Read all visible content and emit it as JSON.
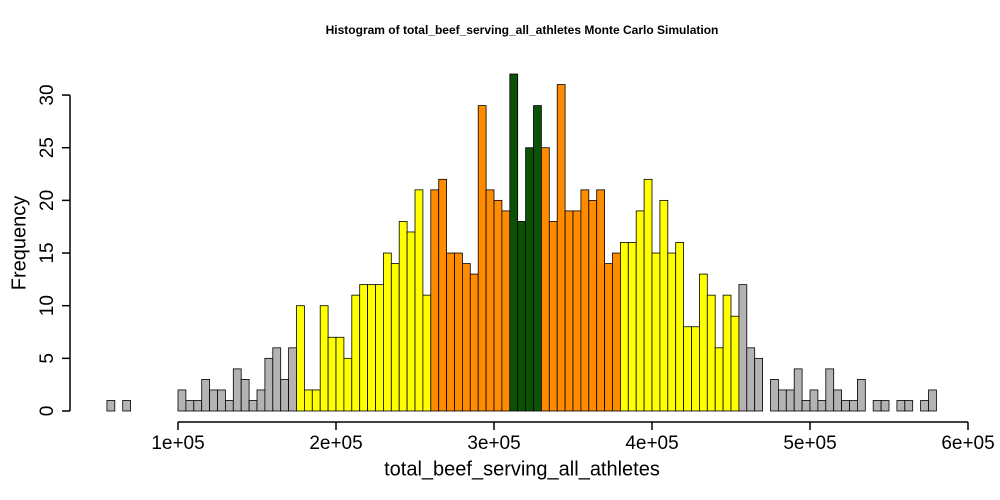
{
  "chart_data": {
    "type": "histogram",
    "title": "Histogram of  total_beef_serving_all_athletes  Monte Carlo Simulation",
    "x_label": "total_beef_serving_all_athletes",
    "y_label": "Frequency",
    "bins": [
      55000,
      60000,
      65000,
      70000,
      75000,
      80000,
      85000,
      90000,
      95000,
      100000,
      105000,
      110000,
      115000,
      120000,
      125000,
      130000,
      135000,
      140000,
      145000,
      150000,
      155000,
      160000,
      165000,
      170000,
      175000,
      180000,
      185000,
      190000,
      195000,
      200000,
      205000,
      210000,
      215000,
      220000,
      225000,
      230000,
      235000,
      240000,
      245000,
      250000,
      255000,
      260000,
      265000,
      270000,
      275000,
      280000,
      285000,
      290000,
      295000,
      300000,
      305000,
      310000,
      315000,
      320000,
      325000,
      330000,
      335000,
      340000,
      345000,
      350000,
      355000,
      360000,
      365000,
      370000,
      375000,
      380000,
      385000,
      390000,
      395000,
      400000,
      405000,
      410000,
      415000,
      420000,
      425000,
      430000,
      435000,
      440000,
      445000,
      450000,
      455000,
      460000,
      465000,
      470000,
      475000,
      480000,
      485000,
      490000,
      495000,
      500000,
      505000,
      510000,
      515000,
      520000,
      525000,
      530000,
      535000,
      540000,
      545000,
      550000,
      555000,
      560000,
      565000,
      570000,
      575000,
      580000
    ],
    "values": [
      1,
      0,
      1,
      0,
      0,
      0,
      0,
      0,
      0,
      2,
      1,
      1,
      3,
      2,
      2,
      1,
      4,
      3,
      1,
      2,
      5,
      6,
      3,
      6,
      10,
      2,
      2,
      10,
      7,
      7,
      5,
      11,
      12,
      12,
      12,
      15,
      14,
      18,
      17,
      21,
      11,
      21,
      22,
      15,
      15,
      14,
      13,
      29,
      21,
      20,
      19,
      32,
      18,
      25,
      29,
      25,
      18,
      31,
      19,
      19,
      21,
      20,
      21,
      14,
      15,
      16,
      16,
      19,
      22,
      15,
      20,
      15,
      16,
      8,
      8,
      13,
      11,
      6,
      11,
      9,
      12,
      6,
      5,
      0,
      3,
      2,
      2,
      4,
      1,
      2,
      1,
      4,
      2,
      1,
      1,
      3,
      0,
      1,
      1,
      0,
      1,
      1,
      0,
      1,
      2
    ],
    "colors": [
      "#b3b3b3",
      "#b3b3b3",
      "#b3b3b3",
      "#b3b3b3",
      "#b3b3b3",
      "#b3b3b3",
      "#b3b3b3",
      "#b3b3b3",
      "#b3b3b3",
      "#b3b3b3",
      "#b3b3b3",
      "#b3b3b3",
      "#b3b3b3",
      "#b3b3b3",
      "#b3b3b3",
      "#b3b3b3",
      "#b3b3b3",
      "#b3b3b3",
      "#b3b3b3",
      "#b3b3b3",
      "#b3b3b3",
      "#b3b3b3",
      "#b3b3b3",
      "#b3b3b3",
      "#ffff00",
      "#ffff00",
      "#ffff00",
      "#ffff00",
      "#ffff00",
      "#ffff00",
      "#ffff00",
      "#ffff00",
      "#ffff00",
      "#ffff00",
      "#ffff00",
      "#ffff00",
      "#ffff00",
      "#ffff00",
      "#ffff00",
      "#ffff00",
      "#ffff00",
      "#ff8c00",
      "#ff8c00",
      "#ff8c00",
      "#ff8c00",
      "#ff8c00",
      "#ff8c00",
      "#ff8c00",
      "#ff8c00",
      "#ff8c00",
      "#ff8c00",
      "#0b5206",
      "#0b5206",
      "#0b5206",
      "#0b5206",
      "#ff8c00",
      "#ff8c00",
      "#ff8c00",
      "#ff8c00",
      "#ff8c00",
      "#ff8c00",
      "#ff8c00",
      "#ff8c00",
      "#ff8c00",
      "#ff8c00",
      "#ffff00",
      "#ffff00",
      "#ffff00",
      "#ffff00",
      "#ffff00",
      "#ffff00",
      "#ffff00",
      "#ffff00",
      "#ffff00",
      "#ffff00",
      "#ffff00",
      "#ffff00",
      "#ffff00",
      "#ffff00",
      "#ffff00",
      "#b3b3b3",
      "#b3b3b3",
      "#b3b3b3",
      "#b3b3b3",
      "#b3b3b3",
      "#b3b3b3",
      "#b3b3b3",
      "#b3b3b3",
      "#b3b3b3",
      "#b3b3b3",
      "#b3b3b3",
      "#b3b3b3",
      "#b3b3b3",
      "#b3b3b3",
      "#b3b3b3",
      "#b3b3b3",
      "#b3b3b3",
      "#b3b3b3",
      "#b3b3b3",
      "#b3b3b3",
      "#b3b3b3",
      "#b3b3b3",
      "#b3b3b3",
      "#b3b3b3",
      "#b3b3b3"
    ],
    "xlim": [
      100000,
      600000
    ],
    "xticks": [
      {
        "value": 100000,
        "label": "1e+05"
      },
      {
        "value": 200000,
        "label": "2e+05"
      },
      {
        "value": 300000,
        "label": "3e+05"
      },
      {
        "value": 400000,
        "label": "4e+05"
      },
      {
        "value": 500000,
        "label": "5e+05"
      },
      {
        "value": 600000,
        "label": "6e+05"
      }
    ],
    "ylim": [
      0,
      32
    ],
    "yticks": [
      0,
      5,
      10,
      15,
      20,
      25,
      30
    ]
  }
}
